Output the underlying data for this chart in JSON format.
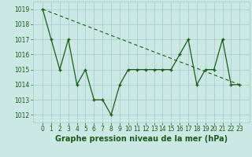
{
  "x": [
    0,
    1,
    2,
    3,
    4,
    5,
    6,
    7,
    8,
    9,
    10,
    11,
    12,
    13,
    14,
    15,
    16,
    17,
    18,
    19,
    20,
    21,
    22,
    23
  ],
  "y": [
    1019,
    1017,
    1015,
    1017,
    1014,
    1015,
    1013,
    1013,
    1012,
    1014,
    1015,
    1015,
    1015,
    1015,
    1015,
    1015,
    1016,
    1017,
    1014,
    1015,
    1015,
    1017,
    1014,
    1014
  ],
  "trend_x": [
    0,
    23
  ],
  "trend_y": [
    1019,
    1014
  ],
  "line_color": "#1a5c1a",
  "bg_color": "#cce8e4",
  "grid_color": "#aacfcb",
  "xlabel": "Graphe pression niveau de la mer (hPa)",
  "ylim": [
    1011.5,
    1019.5
  ],
  "yticks": [
    1012,
    1013,
    1014,
    1015,
    1016,
    1017,
    1018,
    1019
  ],
  "xticks": [
    0,
    1,
    2,
    3,
    4,
    5,
    6,
    7,
    8,
    9,
    10,
    11,
    12,
    13,
    14,
    15,
    16,
    17,
    18,
    19,
    20,
    21,
    22,
    23
  ],
  "tick_fontsize": 5.5,
  "xlabel_fontsize": 7.0
}
